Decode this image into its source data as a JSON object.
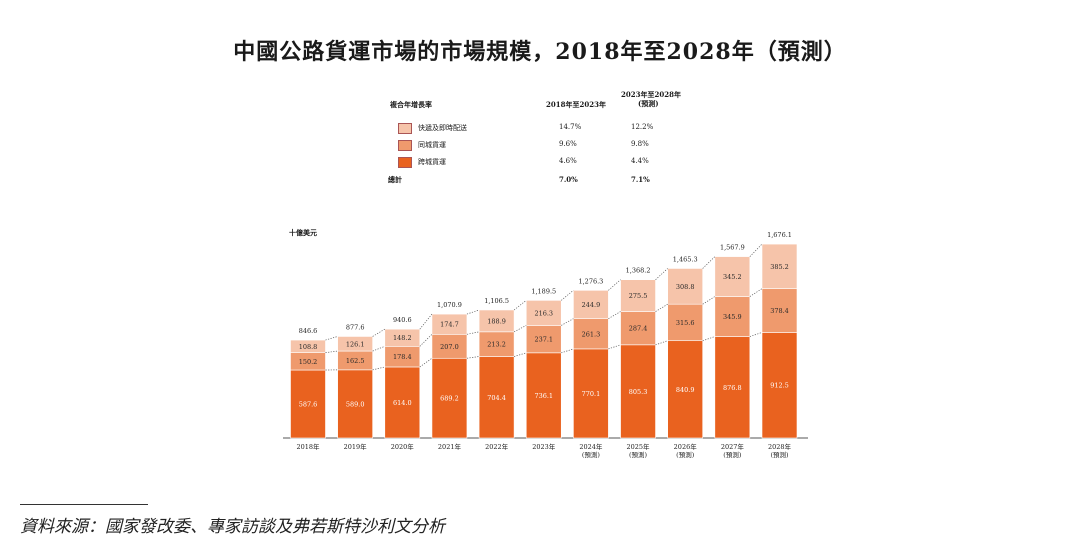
{
  "title": "中國公路貨運市場的市場規模，2018年至2028年（預測）",
  "cagr_table": {
    "header_label": "複合年增長率",
    "col1": "2018年至2023年",
    "col2_line1": "2023年至2028年",
    "col2_line2": "(預測)",
    "rows": [
      {
        "label": "快遞及即時配送",
        "v1": "14.7%",
        "v2": "12.2%",
        "color": "#f6c4aa"
      },
      {
        "label": "同城貨運",
        "v1": "9.6%",
        "v2": "9.8%",
        "color": "#ef9a6d"
      },
      {
        "label": "跨城貨運",
        "v1": "4.6%",
        "v2": "4.4%",
        "color": "#e9621f"
      }
    ],
    "total": {
      "label": "總計",
      "v1": "7.0%",
      "v2": "7.1%"
    }
  },
  "unit_label": "十億美元",
  "source": "資料來源：國家發改委、專家訪談及弗若斯特沙利文分析",
  "chart_data": {
    "type": "bar",
    "stacked": true,
    "categories": [
      "2018年",
      "2019年",
      "2020年",
      "2021年",
      "2022年",
      "2023年",
      "2024年\n(預測)",
      "2025年\n(預測)",
      "2026年\n(預測)",
      "2027年\n(預測)",
      "2028年\n(預測)"
    ],
    "series": [
      {
        "name": "跨城貨運",
        "color": "#e9621f",
        "values": [
          587.6,
          589.0,
          614.0,
          689.2,
          704.4,
          736.1,
          770.1,
          805.3,
          840.9,
          876.8,
          912.5
        ]
      },
      {
        "name": "同城貨運",
        "color": "#ef9a6d",
        "values": [
          150.2,
          162.5,
          178.4,
          207.0,
          213.2,
          237.1,
          261.3,
          287.4,
          315.6,
          345.9,
          378.4
        ]
      },
      {
        "name": "快遞及即時配送",
        "color": "#f6c4aa",
        "values": [
          108.8,
          126.1,
          148.2,
          174.7,
          188.9,
          216.3,
          244.9,
          275.5,
          308.8,
          345.2,
          385.2
        ]
      }
    ],
    "totals": [
      846.6,
      877.6,
      940.6,
      1070.9,
      1106.5,
      1189.5,
      1276.3,
      1368.2,
      1465.3,
      1567.9,
      1676.1
    ],
    "value_labels": {
      "series": [
        [
          "587.6",
          "589.0",
          "614.0",
          "689.2",
          "704.4",
          "736.1",
          "770.1",
          "805.3",
          "840.9",
          "876.8",
          "912.5"
        ],
        [
          "150.2",
          "162.5",
          "178.4",
          "207.0",
          "213.2",
          "237.1",
          "261.3",
          "287.4",
          "315.6",
          "345.9",
          "378.4"
        ],
        [
          "108.8",
          "126.1",
          "148.2",
          "174.7",
          "188.9",
          "216.3",
          "244.9",
          "275.5",
          "308.8",
          "345.2",
          "385.2"
        ]
      ],
      "totals": [
        "846.6",
        "877.6",
        "940.6",
        "1,070.9",
        "1,106.5",
        "1,189.5",
        "1,276.3",
        "1,368.2",
        "1,465.3",
        "1,567.9",
        "1,676.1"
      ]
    },
    "ylim": [
      0,
      1700
    ],
    "grid": false
  }
}
